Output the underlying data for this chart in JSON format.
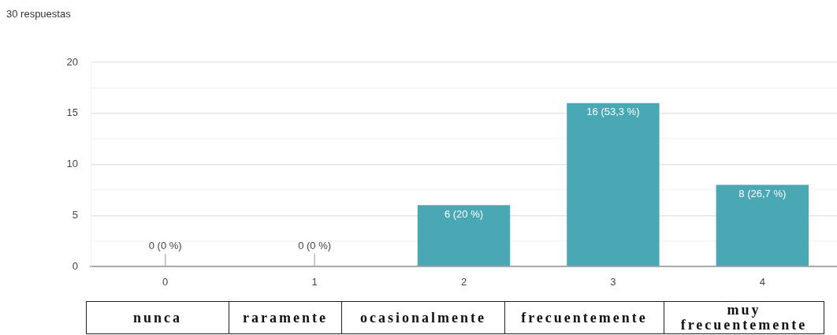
{
  "chart_data": {
    "type": "bar",
    "title": "30 respuestas",
    "categories": [
      "0",
      "1",
      "2",
      "3",
      "4"
    ],
    "values": [
      0,
      0,
      6,
      16,
      8
    ],
    "color": "#4aa8b5",
    "value_labels": [
      "0 (0 %)",
      "0 (0 %)",
      "6 (20 %)",
      "16 (53,3 %)",
      "8 (26,7 %)"
    ],
    "ylim": [
      0,
      20
    ],
    "yticks": [
      0,
      {
        "value": 2.5,
        "label": null
      },
      5,
      {
        "value": 7.5,
        "label": null
      },
      10,
      {
        "value": 12.5,
        "label": null
      },
      15,
      {
        "value": 17.5,
        "label": null
      },
      20
    ],
    "grid": "y",
    "annotations": [
      "nunca",
      "raramente",
      "ocasionalmente",
      "frecuentemente",
      "muy frecuentemente"
    ]
  }
}
